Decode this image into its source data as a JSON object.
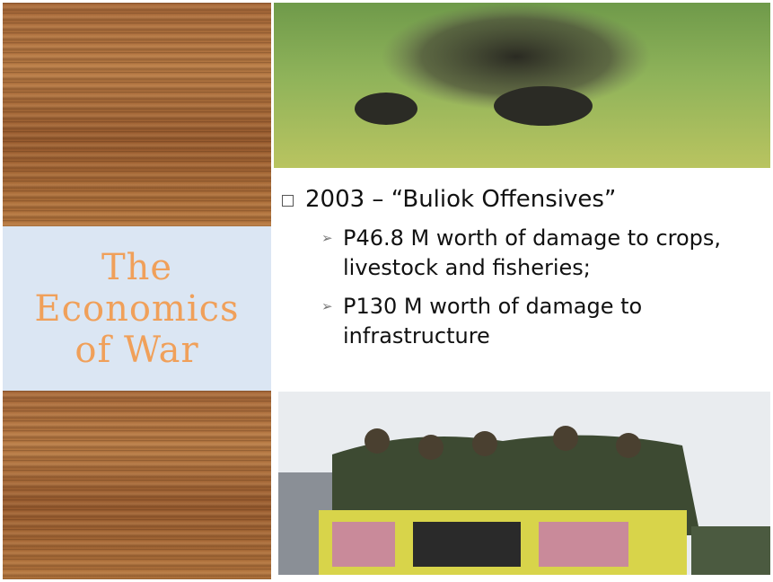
{
  "slide": {
    "title_lines": [
      "The",
      "Economics",
      "of War"
    ],
    "bullets": [
      {
        "text": "2003 – “Buliok Offensives”",
        "sub_bullets": [
          "P46.8 M worth of damage to crops, livestock and fisheries;",
          "P130 M worth of damage to infrastructure"
        ]
      }
    ]
  }
}
